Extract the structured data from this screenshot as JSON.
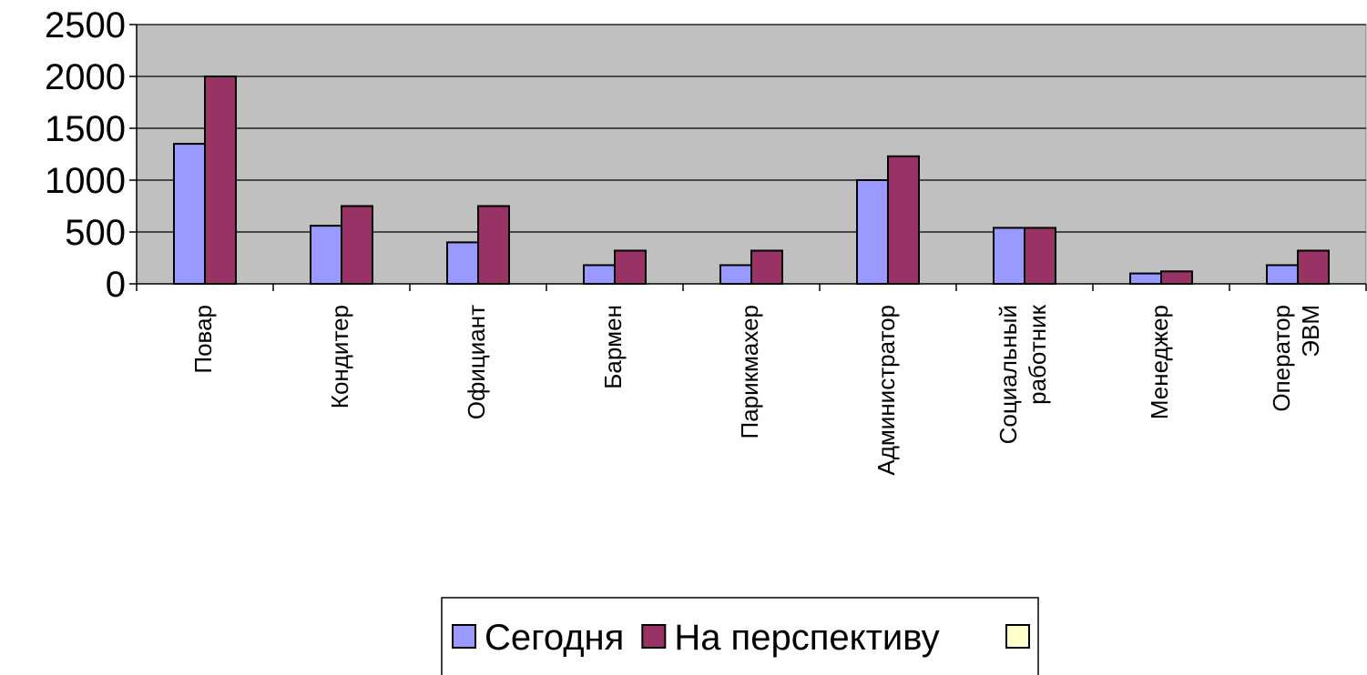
{
  "chart_data": {
    "type": "bar",
    "categories": [
      "Повар",
      "Кондитер",
      "Официант",
      "Бармен",
      "Парикмахер",
      "Администратор",
      "Социальный работник",
      "Менеджер",
      "Оператор ЭВМ"
    ],
    "series": [
      {
        "name": "Сегодня",
        "color": "#9999ff",
        "values": [
          1350,
          560,
          400,
          180,
          180,
          1000,
          540,
          100,
          180
        ]
      },
      {
        "name": "На перспективу",
        "color": "#993366",
        "values": [
          2000,
          750,
          750,
          320,
          320,
          1230,
          540,
          120,
          320
        ]
      }
    ],
    "ylim": [
      0,
      2500
    ],
    "yticks": [
      0,
      500,
      1000,
      1500,
      2000,
      2500
    ],
    "grid": true
  }
}
